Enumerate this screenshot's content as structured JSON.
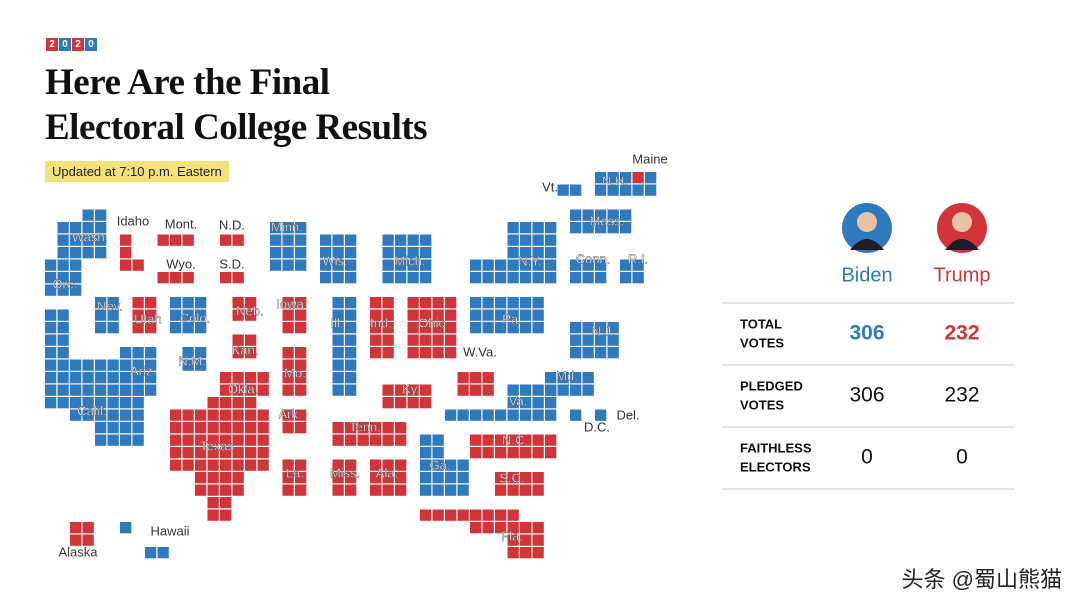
{
  "header": {
    "badge": [
      "2",
      "0",
      "2",
      "0"
    ],
    "title_lines": [
      "Here Are the Final",
      "Electoral College Results"
    ],
    "updated": "Updated at 7:10 p.m. Eastern"
  },
  "colors": {
    "dem": "#2f7abf",
    "rep": "#d1353a"
  },
  "map": {
    "states": [
      {
        "label": "Wash.",
        "party": "dem"
      },
      {
        "label": "Ore.",
        "party": "dem"
      },
      {
        "label": "Calif.",
        "party": "dem"
      },
      {
        "label": "Idaho",
        "party": "rep"
      },
      {
        "label": "Nev.",
        "party": "dem"
      },
      {
        "label": "Utah",
        "party": "rep"
      },
      {
        "label": "Ariz.",
        "party": "dem"
      },
      {
        "label": "Mont.",
        "party": "rep"
      },
      {
        "label": "Wyo.",
        "party": "rep"
      },
      {
        "label": "N.D.",
        "party": "rep"
      },
      {
        "label": "S.D.",
        "party": "rep"
      },
      {
        "label": "Colo.",
        "party": "dem"
      },
      {
        "label": "N.M.",
        "party": "dem"
      },
      {
        "label": "Neb.",
        "party": "rep"
      },
      {
        "label": "Kan.",
        "party": "rep"
      },
      {
        "label": "Okla.",
        "party": "rep"
      },
      {
        "label": "Texas",
        "party": "rep"
      },
      {
        "label": "Minn.",
        "party": "dem"
      },
      {
        "label": "Iowa",
        "party": "rep"
      },
      {
        "label": "Mo.",
        "party": "rep"
      },
      {
        "label": "Ark.",
        "party": "rep"
      },
      {
        "label": "La.",
        "party": "rep"
      },
      {
        "label": "Wis.",
        "party": "dem"
      },
      {
        "label": "Ill.",
        "party": "dem"
      },
      {
        "label": "Mich.",
        "party": "dem"
      },
      {
        "label": "Ind.",
        "party": "rep"
      },
      {
        "label": "Ohio",
        "party": "rep"
      },
      {
        "label": "Ky.",
        "party": "rep"
      },
      {
        "label": "Tenn.",
        "party": "rep"
      },
      {
        "label": "Miss.",
        "party": "rep"
      },
      {
        "label": "Ala.",
        "party": "rep"
      },
      {
        "label": "Ga.",
        "party": "dem"
      },
      {
        "label": "Fla.",
        "party": "rep"
      },
      {
        "label": "S.C.",
        "party": "rep"
      },
      {
        "label": "N.C.",
        "party": "rep"
      },
      {
        "label": "W.Va.",
        "party": "rep"
      },
      {
        "label": "Va.",
        "party": "dem"
      },
      {
        "label": "Pa.",
        "party": "dem"
      },
      {
        "label": "N.Y.",
        "party": "dem"
      },
      {
        "label": "N.J.",
        "party": "dem"
      },
      {
        "label": "Md.",
        "party": "dem"
      },
      {
        "label": "Del.",
        "party": "dem"
      },
      {
        "label": "D.C.",
        "party": "dem"
      },
      {
        "label": "Vt.",
        "party": "dem"
      },
      {
        "label": "N.H.",
        "party": "dem"
      },
      {
        "label": "Maine",
        "party": "dem"
      },
      {
        "label": "Mass.",
        "party": "dem"
      },
      {
        "label": "Conn.",
        "party": "dem"
      },
      {
        "label": "R.I.",
        "party": "dem"
      },
      {
        "label": "Alaska",
        "party": "rep"
      },
      {
        "label": "Hawaii",
        "party": "dem"
      }
    ]
  },
  "results": {
    "candidates": [
      {
        "name": "Biden",
        "party": "dem"
      },
      {
        "name": "Trump",
        "party": "rep"
      }
    ],
    "rows": [
      {
        "label": [
          "TOTAL",
          "VOTES"
        ],
        "values": [
          306,
          232
        ],
        "highlight": true
      },
      {
        "label": [
          "PLEDGED",
          "VOTES"
        ],
        "values": [
          306,
          232
        ],
        "highlight": false
      },
      {
        "label": [
          "FAITHLESS",
          "ELECTORS"
        ],
        "values": [
          0,
          0
        ],
        "highlight": false
      }
    ]
  },
  "watermark": "头条 @蜀山熊猫"
}
